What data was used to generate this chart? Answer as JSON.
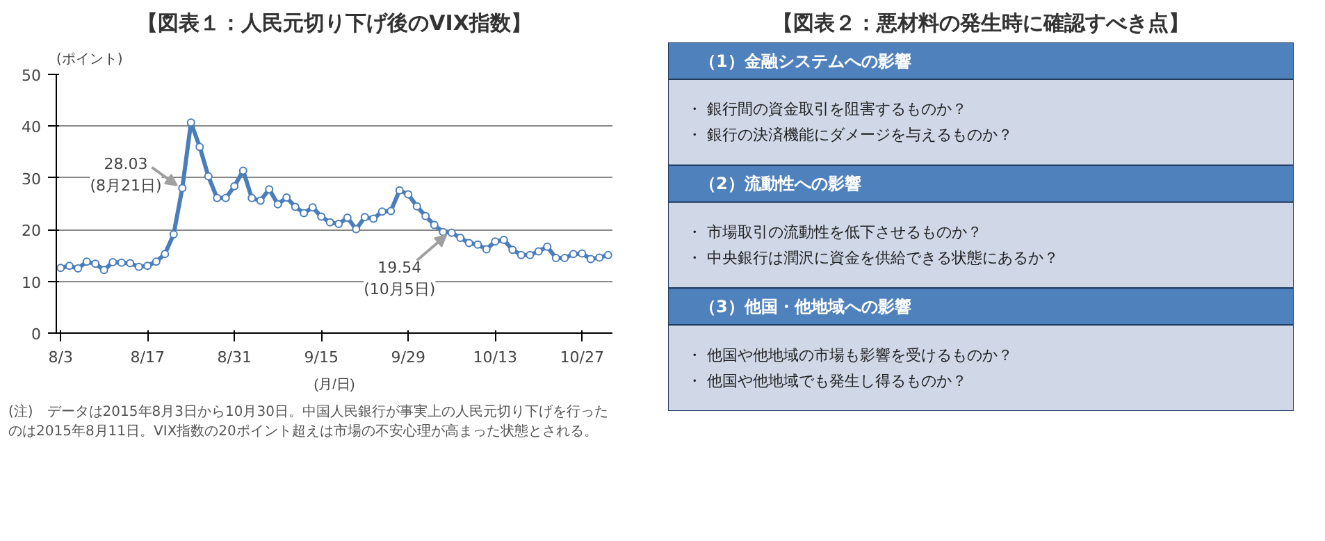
{
  "chart_data": [
    {
      "type": "line",
      "title": "【図表１：人民元切り下げ後のVIX指数】",
      "xlabel": "(月/日)",
      "ylabel": "(ポイント)",
      "categories": [
        "8/3",
        null,
        null,
        null,
        null,
        null,
        null,
        null,
        null,
        null,
        "8/17",
        null,
        null,
        null,
        null,
        null,
        null,
        null,
        null,
        null,
        "8/31",
        null,
        null,
        null,
        null,
        null,
        null,
        null,
        null,
        null,
        "9/15",
        null,
        null,
        null,
        null,
        null,
        null,
        null,
        null,
        null,
        "9/29",
        null,
        null,
        null,
        null,
        null,
        null,
        null,
        null,
        null,
        "10/13",
        null,
        null,
        null,
        null,
        null,
        null,
        null,
        null,
        null,
        "10/27",
        null,
        null,
        null
      ],
      "series": [
        {
          "color": "#4a7ebb",
          "values": [
            12.6,
            13.0,
            12.5,
            13.8,
            13.4,
            12.2,
            13.7,
            13.6,
            13.5,
            12.8,
            13.0,
            13.8,
            15.3,
            19.1,
            28.03,
            40.7,
            36.0,
            30.3,
            26.1,
            26.1,
            28.4,
            31.4,
            26.1,
            25.6,
            27.8,
            24.9,
            26.2,
            24.4,
            23.2,
            24.3,
            22.5,
            21.4,
            21.1,
            22.3,
            20.1,
            22.4,
            22.1,
            23.5,
            23.6,
            27.6,
            26.8,
            24.5,
            22.6,
            20.9,
            19.54,
            19.4,
            18.4,
            17.4,
            17.1,
            16.2,
            17.7,
            18.0,
            16.1,
            15.1,
            15.1,
            15.8,
            16.7,
            14.5,
            14.5,
            15.3,
            15.4,
            14.3,
            14.6,
            15.1
          ]
        }
      ],
      "ylim": [
        0,
        50
      ],
      "yticks": [
        0,
        10,
        20,
        30,
        40,
        50
      ],
      "grid": "y",
      "marker": "circle",
      "line_style": "solid",
      "value_labels": [
        null,
        null,
        null,
        null,
        null,
        null,
        null,
        null,
        null,
        null,
        null,
        null,
        null,
        null,
        "28.03\n(8月21日)",
        null,
        null,
        null,
        null,
        null,
        null,
        null,
        null,
        null,
        null,
        null,
        null,
        null,
        null,
        null,
        null,
        null,
        null,
        null,
        null,
        null,
        null,
        null,
        null,
        null,
        null,
        null,
        null,
        null,
        "19.54\n(10月5日)",
        null,
        null,
        null,
        null,
        null,
        null,
        null,
        null,
        null,
        null,
        null,
        null,
        null,
        null,
        null,
        null,
        null,
        null,
        null
      ],
      "annotations": [
        "(注)　データは2015年8月3日から10月30日。中国人民銀行が事実上の人民元切り下げを行ったのは2015年8月11日。VIX指数の20ポイント超えは市場の不安心理が高まった状態とされる。"
      ]
    },
    {
      "type": "other",
      "title": "【図表２：悪材料の発生時に確認すべき点】",
      "colors": [
        "#4f81bd",
        "#d0d8e8"
      ],
      "annotations": [
        "（1）金融システムへの影響",
        "・ 銀行間の資金取引を阻害するものか？",
        "・ 銀行の決済機能にダメージを与えるものか？",
        "（2）流動性への影響",
        "・ 市場取引の流動性を低下させるものか？",
        "・ 中央銀行は潤沢に資金を供給できる状態にあるか？",
        "（3）他国・他地域への影響",
        "・ 他国や他地域の市場も影響を受けるものか？",
        "・ 他国や他地域でも発生し得るものか？"
      ]
    }
  ]
}
